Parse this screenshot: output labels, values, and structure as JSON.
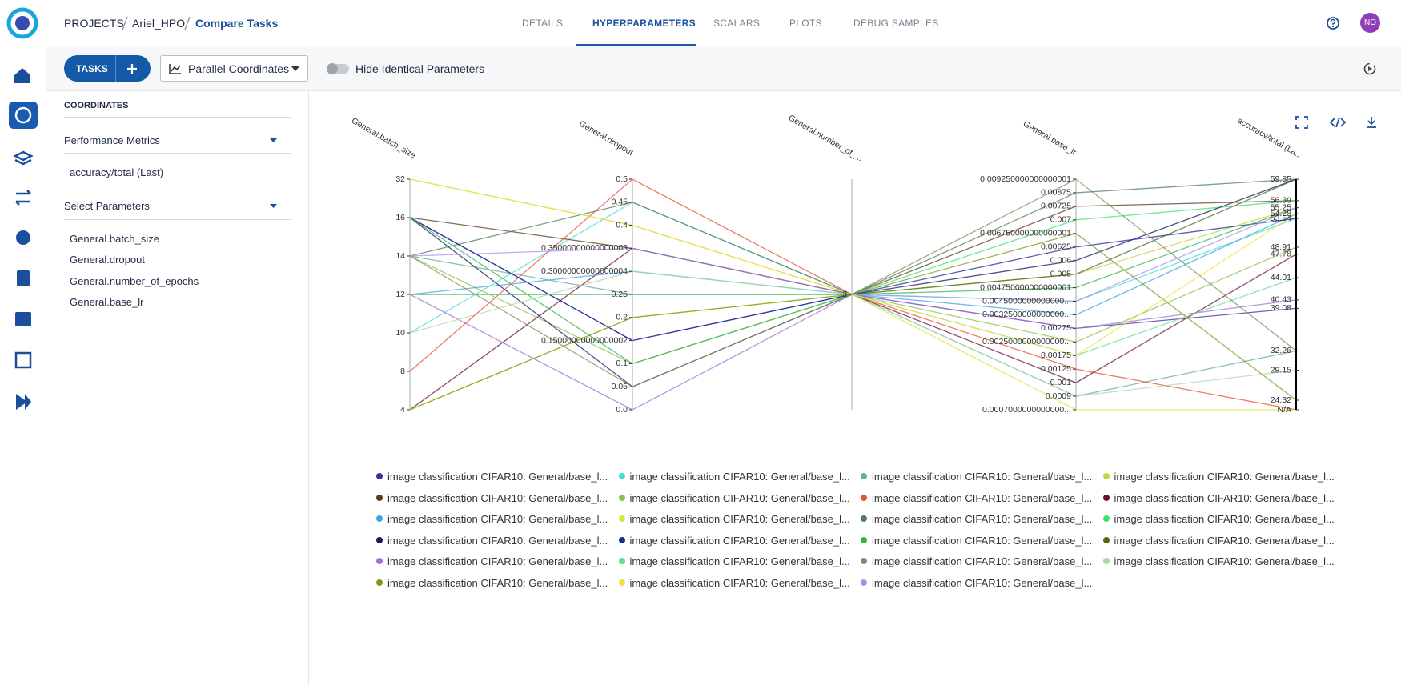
{
  "header": {
    "breadcrumb": [
      "PROJECTS",
      "Ariel_HPO",
      "Compare Tasks"
    ],
    "tabs": [
      "DETAILS",
      "HYPERPARAMETERS",
      "SCALARS",
      "PLOTS",
      "DEBUG SAMPLES"
    ],
    "active_tab": 1,
    "avatar": "NO"
  },
  "toolbar": {
    "tasks_button": "TASKS",
    "view_select": "Parallel Coordinates",
    "toggle_label": "Hide Identical Parameters"
  },
  "sidebar": {
    "title": "COORDINATES",
    "metrics_heading": "Performance Metrics",
    "metrics": [
      "accuracy/total (Last)"
    ],
    "params_heading": "Select Parameters",
    "params": [
      "General.batch_size",
      "General.dropout",
      "General.number_of_epochs",
      "General.base_lr"
    ]
  },
  "chart_data": {
    "type": "parallel",
    "axes": [
      {
        "label": "General.batch_size",
        "scale": "category",
        "ticks": [
          4,
          8,
          10,
          12,
          14,
          16,
          32
        ]
      },
      {
        "label": "General.dropout",
        "scale": "linear",
        "lim": [
          0,
          0.5
        ],
        "ticks": [
          {
            "value": 0,
            "label": "0.0"
          },
          0.05,
          0.1,
          0.15000000000000002,
          0.2,
          0.25,
          0.30000000000000004,
          0.35000000000000003,
          0.4,
          0.45,
          0.5
        ]
      },
      {
        "label": "General.number_of_...",
        "scale": "category",
        "ticks": [
          3
        ]
      },
      {
        "label": "General.base_lr",
        "scale": "category",
        "ticks": [
          {
            "value": 0.0007,
            "label": "0.0007000000000000..."
          },
          0.0009,
          0.001,
          0.00125,
          0.00175,
          {
            "value": 0.0025,
            "label": "0.0025000000000000..."
          },
          0.00275,
          {
            "value": 0.00325,
            "label": "0.0032500000000000..."
          },
          {
            "value": 0.0045,
            "label": "0.0045000000000000..."
          },
          {
            "value": 0.00475,
            "label": "0.004750000000000001"
          },
          0.005,
          0.006,
          0.00625,
          {
            "value": 0.00675,
            "label": "0.006750000000000001"
          },
          0.007,
          0.00725,
          0.00875,
          {
            "value": 0.00925,
            "label": "0.009250000000000001"
          }
        ]
      },
      {
        "label": "accuracy/total (La...",
        "scale": "linear",
        "lim": [
          24.32,
          59.85
        ],
        "ticks": [
          {
            "value": null,
            "label": "N/A"
          },
          24.32,
          29.15,
          32.26,
          39.08,
          40.43,
          44.01,
          47.78,
          48.91,
          53.54,
          54.28,
          55.25,
          56.39,
          59.85
        ]
      }
    ],
    "series": [
      {
        "name": "image classification CIFAR10: General/base_l...",
        "color": "#3b2fa0",
        "values": [
          16,
          0.15000000000000002,
          3,
          0.00275,
          39.08
        ]
      },
      {
        "name": "image classification CIFAR10: General/base_l...",
        "color": "#40e0d0",
        "values": [
          10,
          0.45,
          3,
          0.0045,
          53.54
        ]
      },
      {
        "name": "image classification CIFAR10: General/base_l...",
        "color": "#6aab9c",
        "values": [
          14,
          0.25,
          3,
          0.0009,
          32.26
        ]
      },
      {
        "name": "image classification CIFAR10: General/base_l...",
        "color": "#c8d23a",
        "values": [
          32,
          0.4,
          3,
          0.005,
          55.25
        ]
      },
      {
        "name": "image classification CIFAR10: General/base_l...",
        "color": "#5c3a1e",
        "values": [
          16,
          0.35000000000000003,
          3,
          0.00725,
          56.39
        ]
      },
      {
        "name": "image classification CIFAR10: General/base_l...",
        "color": "#8bc34a",
        "values": [
          14,
          0.1,
          3,
          0.0025,
          48.91
        ]
      },
      {
        "name": "image classification CIFAR10: General/base_l...",
        "color": "#e8503a",
        "values": [
          8,
          0.5,
          3,
          0.00125,
          null
        ]
      },
      {
        "name": "image classification CIFAR10: General/base_l...",
        "color": "#6b0f3a",
        "values": [
          4,
          0.35000000000000003,
          3,
          0.001,
          47.78
        ]
      },
      {
        "name": "image classification CIFAR10: General/base_l...",
        "color": "#3ca3e6",
        "values": [
          12,
          0.30000000000000004,
          3,
          0.00325,
          54.28
        ]
      },
      {
        "name": "image classification CIFAR10: General/base_l...",
        "color": "#d4e83a",
        "values": [
          4,
          0.2,
          3,
          0.0007,
          null
        ]
      },
      {
        "name": "image classification CIFAR10: General/base_l...",
        "color": "#4f7f5a",
        "values": [
          14,
          0.45,
          3,
          0.00875,
          59.85
        ]
      },
      {
        "name": "image classification CIFAR10: General/base_l...",
        "color": "#3ee070",
        "values": [
          12,
          0.25,
          3,
          0.007,
          56.39
        ]
      },
      {
        "name": "image classification CIFAR10: General/base_l...",
        "color": "#1a1a5e",
        "values": [
          16,
          0.05,
          3,
          0.006,
          59.85
        ]
      },
      {
        "name": "image classification CIFAR10: General/base_l...",
        "color": "#1a2a9e",
        "values": [
          16,
          0.15000000000000002,
          3,
          0.00625,
          53.54
        ]
      },
      {
        "name": "image classification CIFAR10: General/base_l...",
        "color": "#2eb84a",
        "values": [
          16,
          0.1,
          3,
          0.00475,
          55.25
        ]
      },
      {
        "name": "image classification CIFAR10: General/base_l...",
        "color": "#4a6a1a",
        "values": [
          12,
          0.25,
          3,
          0.005,
          59.85
        ]
      },
      {
        "name": "image classification CIFAR10: General/base_l...",
        "color": "#a070d8",
        "values": [
          12,
          0,
          3,
          0.00275,
          40.43
        ]
      },
      {
        "name": "image classification CIFAR10: General/base_l...",
        "color": "#60e090",
        "values": [
          12,
          0.25,
          3,
          0.00175,
          44.01
        ]
      },
      {
        "name": "image classification CIFAR10: General/base_l...",
        "color": "#8a8a60",
        "values": [
          14,
          0.05,
          3,
          0.00925,
          32.26
        ]
      },
      {
        "name": "image classification CIFAR10: General/base_l...",
        "color": "#a8d8a8",
        "values": [
          10,
          0.30000000000000004,
          3,
          0.0009,
          29.15
        ]
      },
      {
        "name": "image classification CIFAR10: General/base_l...",
        "color": "#7a9a1a",
        "values": [
          4,
          0.2,
          3,
          0.00675,
          24.32
        ]
      },
      {
        "name": "image classification CIFAR10: General/base_l...",
        "color": "#f0e040",
        "values": [
          32,
          0.4,
          3,
          0.00175,
          54.28
        ]
      },
      {
        "name": "image classification CIFAR10: General/base_l...",
        "color": "#a890f0",
        "values": [
          14,
          0.35000000000000003,
          3,
          0.0045,
          55.25
        ]
      }
    ]
  }
}
